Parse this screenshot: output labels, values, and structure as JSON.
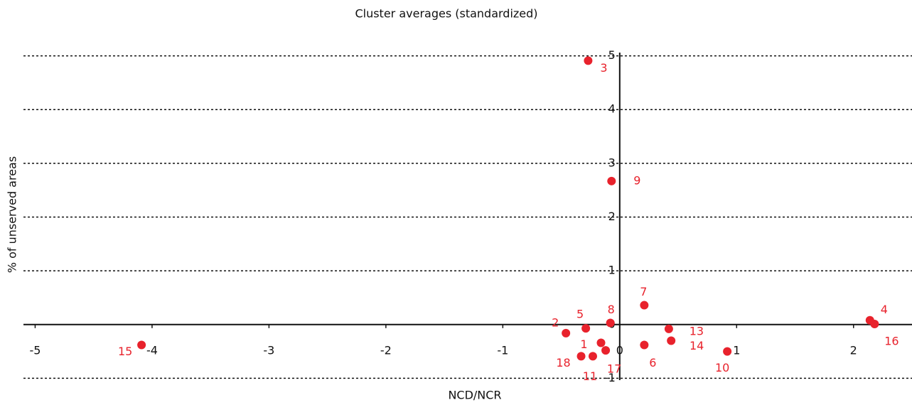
{
  "chart_data": {
    "type": "scatter",
    "title": "Cluster averages (standardized)",
    "x_label": "NCD/NCR",
    "y_label": "% of unserved areas",
    "labels": [
      "1",
      "2",
      "3",
      "4",
      "5",
      "6",
      "7",
      "8",
      "9",
      "10",
      "11",
      "13",
      "14",
      "15",
      "16",
      "17",
      "18"
    ],
    "x": [
      -0.16,
      -0.46,
      -0.27,
      2.14,
      -0.29,
      0.21,
      0.21,
      -0.08,
      -0.07,
      0.92,
      -0.23,
      0.42,
      0.44,
      -4.09,
      2.18,
      -0.12,
      -0.33
    ],
    "y": [
      -0.34,
      -0.16,
      4.91,
      0.08,
      -0.07,
      -0.38,
      0.36,
      0.03,
      2.67,
      -0.5,
      -0.59,
      -0.08,
      -0.3,
      -0.38,
      0.01,
      -0.48,
      -0.59
    ],
    "color": "#e8222c",
    "xlim": [
      -5.1,
      2.5
    ],
    "xticks": [
      -5,
      -4,
      -3,
      -2,
      -1,
      0,
      1,
      2
    ],
    "ylim": [
      -1.1,
      5.1
    ],
    "yticks": [
      -1,
      0,
      1,
      2,
      3,
      4,
      5
    ],
    "grid": true
  }
}
